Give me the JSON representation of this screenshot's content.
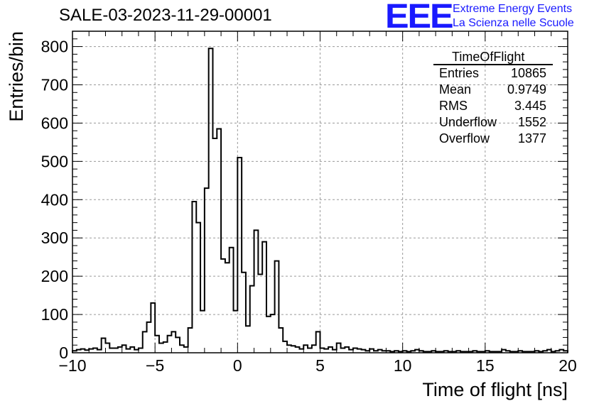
{
  "header": {
    "title": "SALE-03-2023-11-29-00001",
    "logo_text": "EEE",
    "logo_line1": "Extreme Energy Events",
    "logo_line2": "La Scienza nelle Scuole",
    "logo_color": "#1a1aff"
  },
  "stats": {
    "title": "TimeOfFlight",
    "rows": [
      {
        "key": "Entries",
        "value": "10865"
      },
      {
        "key": "Mean",
        "value": "0.9749"
      },
      {
        "key": "RMS",
        "value": "3.445"
      },
      {
        "key": "Underflow",
        "value": "1552"
      },
      {
        "key": "Overflow",
        "value": "1377"
      }
    ]
  },
  "chart_data": {
    "type": "bar",
    "style": "step-histogram",
    "xlabel": "Time of flight [ns]",
    "ylabel": "Entries/bin",
    "xlim": [
      -10,
      20
    ],
    "ylim": [
      0,
      840
    ],
    "grid": true,
    "bin_width": 0.25,
    "x_ticks": [
      -10,
      -5,
      0,
      5,
      10,
      15,
      20
    ],
    "y_ticks": [
      0,
      100,
      200,
      300,
      400,
      500,
      600,
      700,
      800
    ],
    "values": [
      5,
      8,
      10,
      7,
      10,
      12,
      8,
      38,
      25,
      12,
      12,
      15,
      20,
      10,
      15,
      8,
      12,
      55,
      80,
      130,
      45,
      25,
      28,
      45,
      55,
      40,
      20,
      15,
      65,
      395,
      340,
      110,
      430,
      795,
      560,
      585,
      245,
      235,
      275,
      110,
      510,
      210,
      70,
      175,
      320,
      205,
      290,
      95,
      100,
      240,
      65,
      30,
      20,
      18,
      15,
      10,
      20,
      12,
      20,
      55,
      12,
      10,
      15,
      8,
      25,
      12,
      15,
      8,
      12,
      10,
      8,
      5,
      10,
      5,
      8,
      5,
      5,
      3,
      5,
      3,
      5,
      3,
      5,
      8,
      5,
      3,
      3,
      5,
      3,
      3,
      5,
      3,
      3,
      5,
      3,
      3,
      3,
      5,
      3,
      3,
      5,
      3,
      3,
      3,
      8,
      5,
      3,
      3,
      5,
      3,
      3,
      3,
      5,
      3,
      5,
      8,
      3,
      5,
      8,
      5
    ]
  }
}
